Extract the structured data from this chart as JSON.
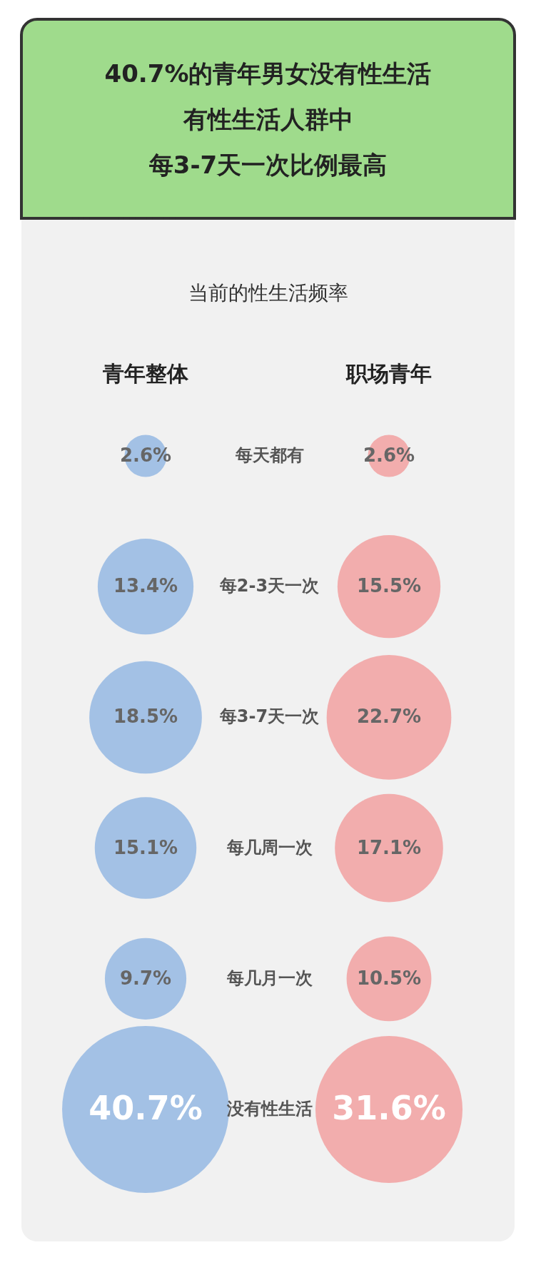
{
  "chart_data": {
    "type": "other",
    "title": "40.7%的青年男女没有性生活有性生活人群中每3-7天一次比例最高",
    "subtitle": "当前的性生活频率",
    "categories": [
      "每天都有",
      "每2-3天一次",
      "每3-7天一次",
      "每几周一次",
      "每几月一次",
      "没有性生活"
    ],
    "series": [
      {
        "name": "青年整体",
        "color": "#8db3e2",
        "values": [
          2.6,
          13.4,
          18.5,
          15.1,
          9.7,
          40.7
        ],
        "value_labels": [
          "2.6%",
          "13.4%",
          "18.5%",
          "15.1%",
          "9.7%",
          "40.7%"
        ]
      },
      {
        "name": "职场青年",
        "color": "#f29a9a",
        "values": [
          2.6,
          15.5,
          22.7,
          17.1,
          10.5,
          31.6
        ],
        "value_labels": [
          "2.6%",
          "15.5%",
          "22.7%",
          "17.1%",
          "10.5%",
          "31.6%"
        ]
      }
    ]
  }
}
